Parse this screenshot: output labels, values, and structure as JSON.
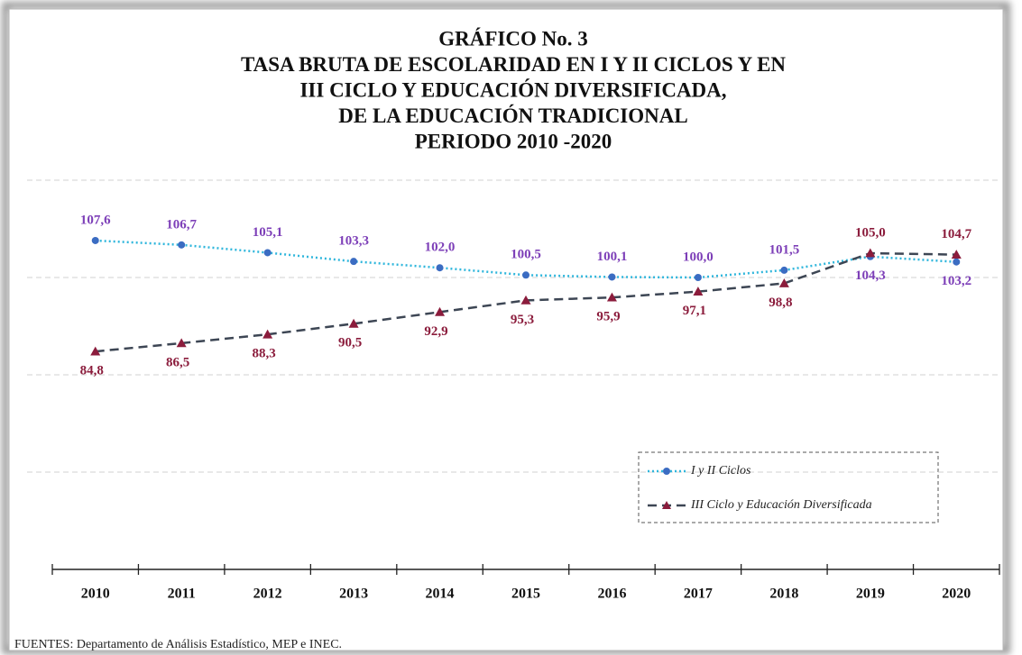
{
  "chart_data": {
    "type": "line",
    "title": [
      "GRÁFICO No. 3",
      "TASA BRUTA DE ESCOLARIDAD EN I Y II CICLOS Y EN",
      "III CICLO Y EDUCACIÓN DIVERSIFICADA,",
      "DE LA EDUCACIÓN TRADICIONAL",
      "PERIODO 2010 -2020"
    ],
    "categories": [
      "2010",
      "2011",
      "2012",
      "2013",
      "2014",
      "2015",
      "2016",
      "2017",
      "2018",
      "2019",
      "2020"
    ],
    "series": [
      {
        "name": "I y II Ciclos",
        "color": "#2fb6dc",
        "marker_color": "#3b6cc2",
        "label_color": "#7d3fb8",
        "values": [
          107.6,
          106.7,
          105.1,
          103.3,
          102.0,
          100.5,
          100.1,
          100.0,
          101.5,
          104.3,
          103.2
        ],
        "value_labels": [
          "107,6",
          "106,7",
          "105,1",
          "103,3",
          "102,0",
          "100,5",
          "100,1",
          "100,0",
          "101,5",
          "104,3",
          "103,2"
        ]
      },
      {
        "name": "III Ciclo y Educación Diversificada",
        "color": "#3d4654",
        "marker_color": "#8b1c3c",
        "label_color": "#8b1c3c",
        "values": [
          84.8,
          86.5,
          88.3,
          90.5,
          92.9,
          95.3,
          95.9,
          97.1,
          98.8,
          105.0,
          104.7
        ],
        "value_labels": [
          "84,8",
          "86,5",
          "88,3",
          "90,5",
          "92,9",
          "95,3",
          "95,9",
          "97,1",
          "98,8",
          "105,0",
          "104,7"
        ]
      }
    ],
    "ylim": [
      40,
      120
    ],
    "yticks": [
      40,
      60,
      80,
      100,
      120
    ],
    "grid": true,
    "source": "FUENTES: Departamento de Análisis Estadístico, MEP e INEC."
  }
}
